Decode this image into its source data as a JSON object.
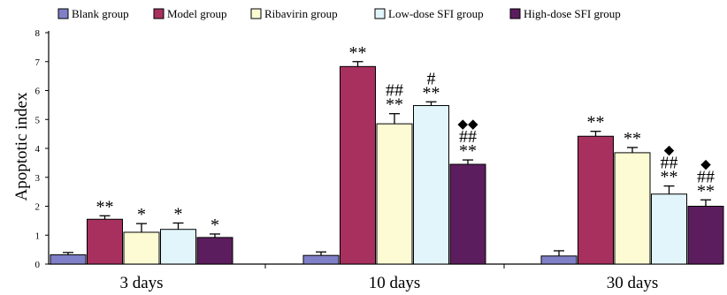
{
  "chart_data": {
    "type": "bar",
    "ylabel": "Apoptotic index",
    "ylim": [
      0,
      8
    ],
    "yticks": [
      "0",
      "1",
      "2",
      "3",
      "4",
      "5",
      "6",
      "7",
      "8"
    ],
    "grid": false,
    "legend_position": "top",
    "categories": [
      "3 days",
      "10 days",
      "30 days"
    ],
    "series": [
      {
        "name": "Blank group",
        "color": "#8080c8",
        "values": [
          0.32,
          0.3,
          0.28
        ],
        "errors": [
          0.08,
          0.12,
          0.18
        ],
        "annotations": [
          [],
          [],
          []
        ]
      },
      {
        "name": "Model group",
        "color": "#a8305f",
        "values": [
          1.55,
          6.83,
          4.42
        ],
        "errors": [
          0.12,
          0.17,
          0.17
        ],
        "annotations": [
          [
            "**"
          ],
          [
            "**"
          ],
          [
            "**"
          ]
        ]
      },
      {
        "name": "Ribavirin group",
        "color": "#fdfbd3",
        "values": [
          1.1,
          4.85,
          3.85
        ],
        "errors": [
          0.3,
          0.35,
          0.18
        ],
        "annotations": [
          [
            "*"
          ],
          [
            "**",
            "##"
          ],
          [
            "**"
          ]
        ]
      },
      {
        "name": "Low-dose SFI group",
        "color": "#e2f5fb",
        "values": [
          1.2,
          5.48,
          2.42
        ],
        "errors": [
          0.22,
          0.13,
          0.28
        ],
        "annotations": [
          [
            "*"
          ],
          [
            "**",
            "#"
          ],
          [
            "**",
            "##",
            "◆"
          ]
        ]
      },
      {
        "name": "High-dose SFI group",
        "color": "#5c1d5e",
        "values": [
          0.92,
          3.45,
          2.0
        ],
        "errors": [
          0.12,
          0.15,
          0.22
        ],
        "annotations": [
          [
            "*"
          ],
          [
            "**",
            "##",
            "◆◆"
          ],
          [
            "**",
            "##",
            "◆"
          ]
        ]
      }
    ]
  }
}
